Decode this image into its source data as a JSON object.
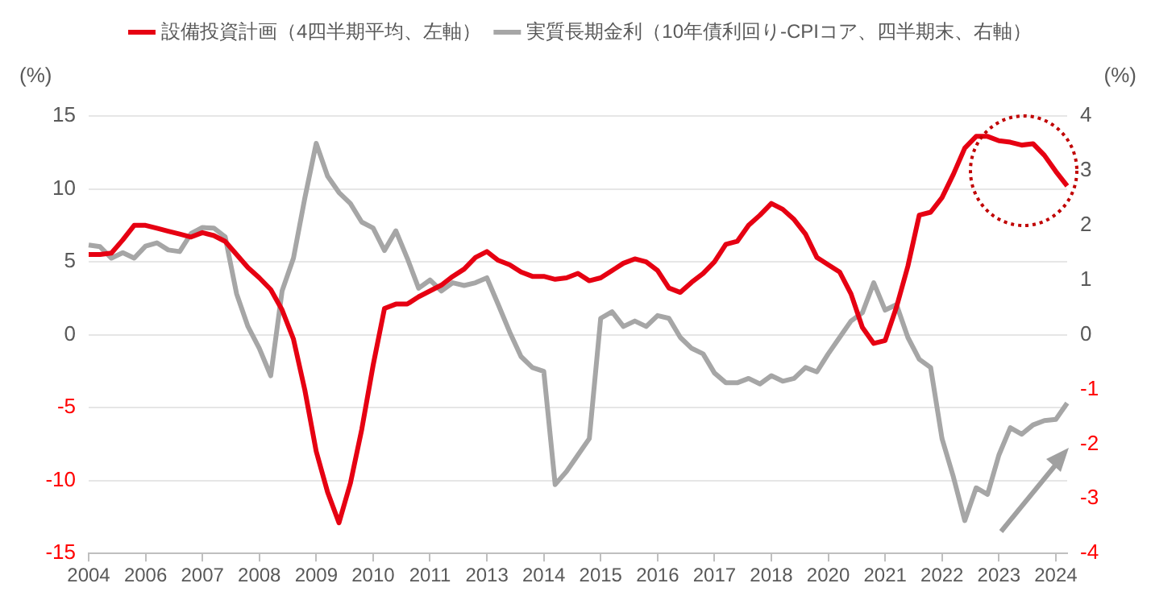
{
  "chart_data": {
    "type": "line",
    "ylabel": "(%)",
    "y2label": "(%)",
    "categories": [
      "2004",
      null,
      null,
      null,
      null,
      "2006",
      null,
      null,
      null,
      null,
      "2007",
      null,
      null,
      null,
      null,
      "2008",
      null,
      null,
      null,
      null,
      "2009",
      null,
      null,
      null,
      null,
      "2010",
      null,
      null,
      null,
      null,
      "2011",
      null,
      null,
      null,
      null,
      "2013",
      null,
      null,
      null,
      null,
      "2014",
      null,
      null,
      null,
      null,
      "2015",
      null,
      null,
      null,
      null,
      "2016",
      null,
      null,
      null,
      null,
      "2017",
      null,
      null,
      null,
      null,
      "2018",
      null,
      null,
      null,
      null,
      "2020",
      null,
      null,
      null,
      null,
      "2021",
      null,
      null,
      null,
      null,
      "2022",
      null,
      null,
      null,
      null,
      "2023",
      null,
      null,
      null,
      null,
      "2024",
      null
    ],
    "series": [
      {
        "name": "設備投資計画（4四半期平均、左軸）",
        "color": "#e60012",
        "values": [
          5.5,
          5.5,
          5.6,
          6.5,
          7.5,
          7.5,
          7.3,
          7.1,
          6.9,
          6.7,
          7.0,
          6.8,
          6.4,
          5.5,
          4.6,
          3.9,
          3.1,
          1.7,
          -0.3,
          -3.8,
          -8.0,
          -10.8,
          -12.9,
          -10.2,
          -6.5,
          -2.1,
          1.8,
          2.1,
          2.1,
          2.6,
          3.0,
          3.4,
          4.0,
          4.5,
          5.3,
          5.7,
          5.1,
          4.8,
          4.3,
          4.0,
          4.0,
          3.8,
          3.9,
          4.2,
          3.7,
          3.9,
          4.4,
          4.9,
          5.2,
          5.0,
          4.4,
          3.2,
          2.9,
          3.6,
          4.2,
          5.0,
          6.2,
          6.4,
          7.5,
          8.2,
          9.0,
          8.6,
          7.9,
          6.9,
          5.3,
          4.8,
          4.3,
          2.8,
          0.5,
          -0.6,
          -0.4,
          1.9,
          4.7,
          8.2,
          8.4,
          9.4,
          11.0,
          12.8,
          13.6,
          13.6,
          13.3,
          13.2,
          13.0,
          13.1,
          12.3,
          11.2,
          10.2
        ]
      },
      {
        "name": "実質長期金利（10年債利回り-CPIコア、四半期末、右軸）",
        "color": "#a6a6a6",
        "axis": "y2",
        "values": [
          1.64,
          1.61,
          1.4,
          1.5,
          1.4,
          1.62,
          1.68,
          1.55,
          1.52,
          1.85,
          1.96,
          1.95,
          1.79,
          0.75,
          0.15,
          -0.25,
          -0.75,
          0.8,
          1.4,
          2.5,
          3.5,
          2.9,
          2.6,
          2.4,
          2.06,
          1.95,
          1.54,
          1.9,
          1.4,
          0.85,
          1.0,
          0.8,
          0.95,
          0.9,
          0.95,
          1.04,
          0.55,
          0.05,
          -0.4,
          -0.6,
          -0.67,
          -2.74,
          -2.5,
          -2.2,
          -1.9,
          0.3,
          0.42,
          0.15,
          0.25,
          0.15,
          0.35,
          0.3,
          -0.05,
          -0.25,
          -0.35,
          -0.7,
          -0.88,
          -0.88,
          -0.8,
          -0.9,
          -0.75,
          -0.85,
          -0.8,
          -0.6,
          -0.68,
          -0.35,
          -0.05,
          0.25,
          0.4,
          0.95,
          0.45,
          0.55,
          -0.05,
          -0.45,
          -0.6,
          -1.9,
          -2.6,
          -3.4,
          -2.8,
          -2.92,
          -2.2,
          -1.7,
          -1.82,
          -1.65,
          -1.57,
          -1.55,
          -1.25
        ]
      }
    ],
    "ylim": [
      -15,
      15
    ],
    "yticks": [
      -15,
      -10,
      -5,
      0,
      5,
      10,
      15
    ],
    "y2lim": [
      -4,
      4
    ],
    "y2ticks": [
      -4,
      -3,
      -2,
      -1,
      0,
      1,
      2,
      3,
      4
    ],
    "grid": "y",
    "legend": "top",
    "marker": "none",
    "line_style": "solid"
  }
}
